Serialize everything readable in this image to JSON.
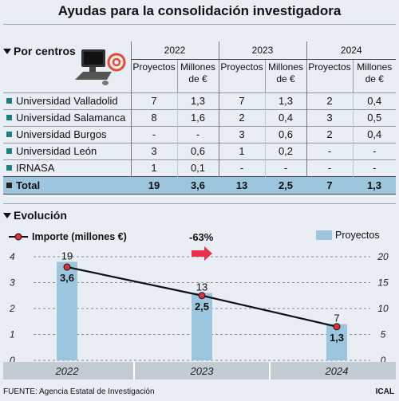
{
  "title": "Ayudas para la consolidación investigadora",
  "section1": "Por centros",
  "years": [
    "2022",
    "2023",
    "2024"
  ],
  "col_proyectos": "Proyectos",
  "col_millones_1": "Millones",
  "col_millones_2": "de €",
  "rows": [
    {
      "name": "Universidad Valladolid",
      "v": [
        "7",
        "1,3",
        "7",
        "1,3",
        "2",
        "0,4"
      ]
    },
    {
      "name": "Universidad Salamanca",
      "v": [
        "8",
        "1,6",
        "2",
        "0,4",
        "3",
        "0,5"
      ]
    },
    {
      "name": "Universidad Burgos",
      "v": [
        "-",
        "-",
        "3",
        "0,6",
        "2",
        "0,4"
      ]
    },
    {
      "name": "Universidad León",
      "v": [
        "3",
        "0,6",
        "1",
        "0,2",
        "-",
        "-"
      ]
    },
    {
      "name": "IRNASA",
      "v": [
        "1",
        "0,1",
        "-",
        "-",
        "-",
        "-"
      ]
    }
  ],
  "total": {
    "name": "Total",
    "v": [
      "19",
      "3,6",
      "13",
      "2,5",
      "7",
      "1,3"
    ]
  },
  "section2": "Evolución",
  "legend_line": "Importe (millones €)",
  "legend_bars": "Proyectos",
  "change_label": "-63%",
  "footer": "FUENTE: Agencia Estatal de Investigación",
  "brand": "ICAL",
  "colors": {
    "bar": "#9cc5de",
    "marker": "#e0303a",
    "arrow": "#e8334a",
    "legend_square": "#1a7f80"
  },
  "chart_data": {
    "type": "bar",
    "categories": [
      "2022",
      "2023",
      "2024"
    ],
    "series": [
      {
        "name": "Proyectos",
        "kind": "bar",
        "axis": "right",
        "values": [
          19,
          13,
          7
        ],
        "labels": [
          "19",
          "13",
          "7"
        ]
      },
      {
        "name": "Importe (millones €)",
        "kind": "line",
        "axis": "left",
        "values": [
          3.6,
          2.5,
          1.3
        ],
        "labels": [
          "3,6",
          "2,5",
          "1,3"
        ]
      }
    ],
    "ylim_left": [
      0,
      4
    ],
    "yticks_left": [
      "0",
      "1",
      "2",
      "3",
      "4"
    ],
    "ylim_right": [
      0,
      20
    ],
    "yticks_right": [
      "0",
      "5",
      "10",
      "15",
      "20"
    ],
    "grid": true,
    "legend": "top"
  }
}
